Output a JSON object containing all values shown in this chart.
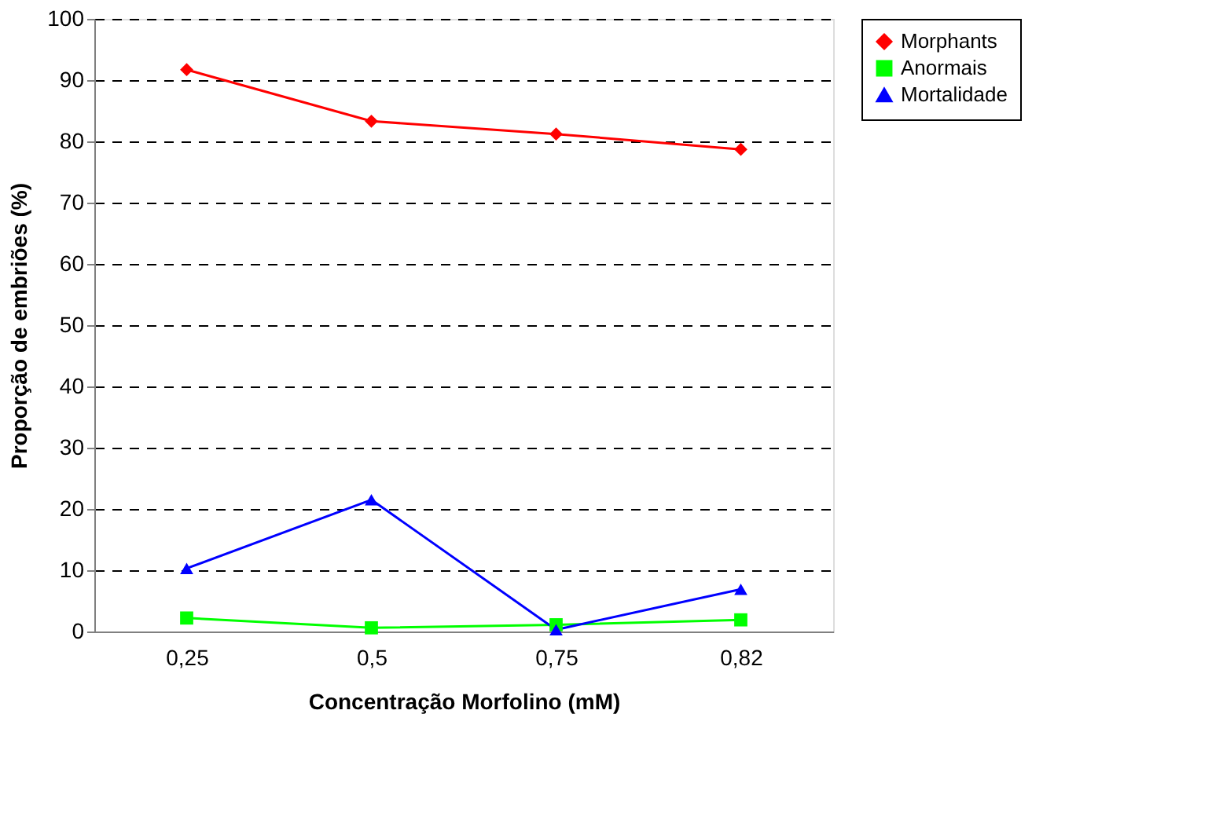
{
  "chart_data": {
    "type": "line",
    "xlabel": "Concentração Morfolino (mM)",
    "ylabel": "Proporção de embriões (%)",
    "categories": [
      "0,25",
      "0,5",
      "0,75",
      "0,82"
    ],
    "series": [
      {
        "name": "Morphants",
        "color": "#ff0000",
        "marker": "diamond",
        "values": [
          91.7,
          83.3,
          81.2,
          78.7
        ]
      },
      {
        "name": "Anormais",
        "color": "#00ff00",
        "marker": "square",
        "values": [
          2.2,
          0.6,
          1.1,
          1.9
        ]
      },
      {
        "name": "Mortalidade",
        "color": "#0000ff",
        "marker": "triangle",
        "values": [
          10.3,
          21.5,
          0.3,
          6.9
        ]
      }
    ],
    "ylim": [
      0,
      100
    ],
    "yticks": [
      0,
      10,
      20,
      30,
      40,
      50,
      60,
      70,
      80,
      90,
      100
    ],
    "grid": "y",
    "legend": "right",
    "line_style": "solid"
  }
}
